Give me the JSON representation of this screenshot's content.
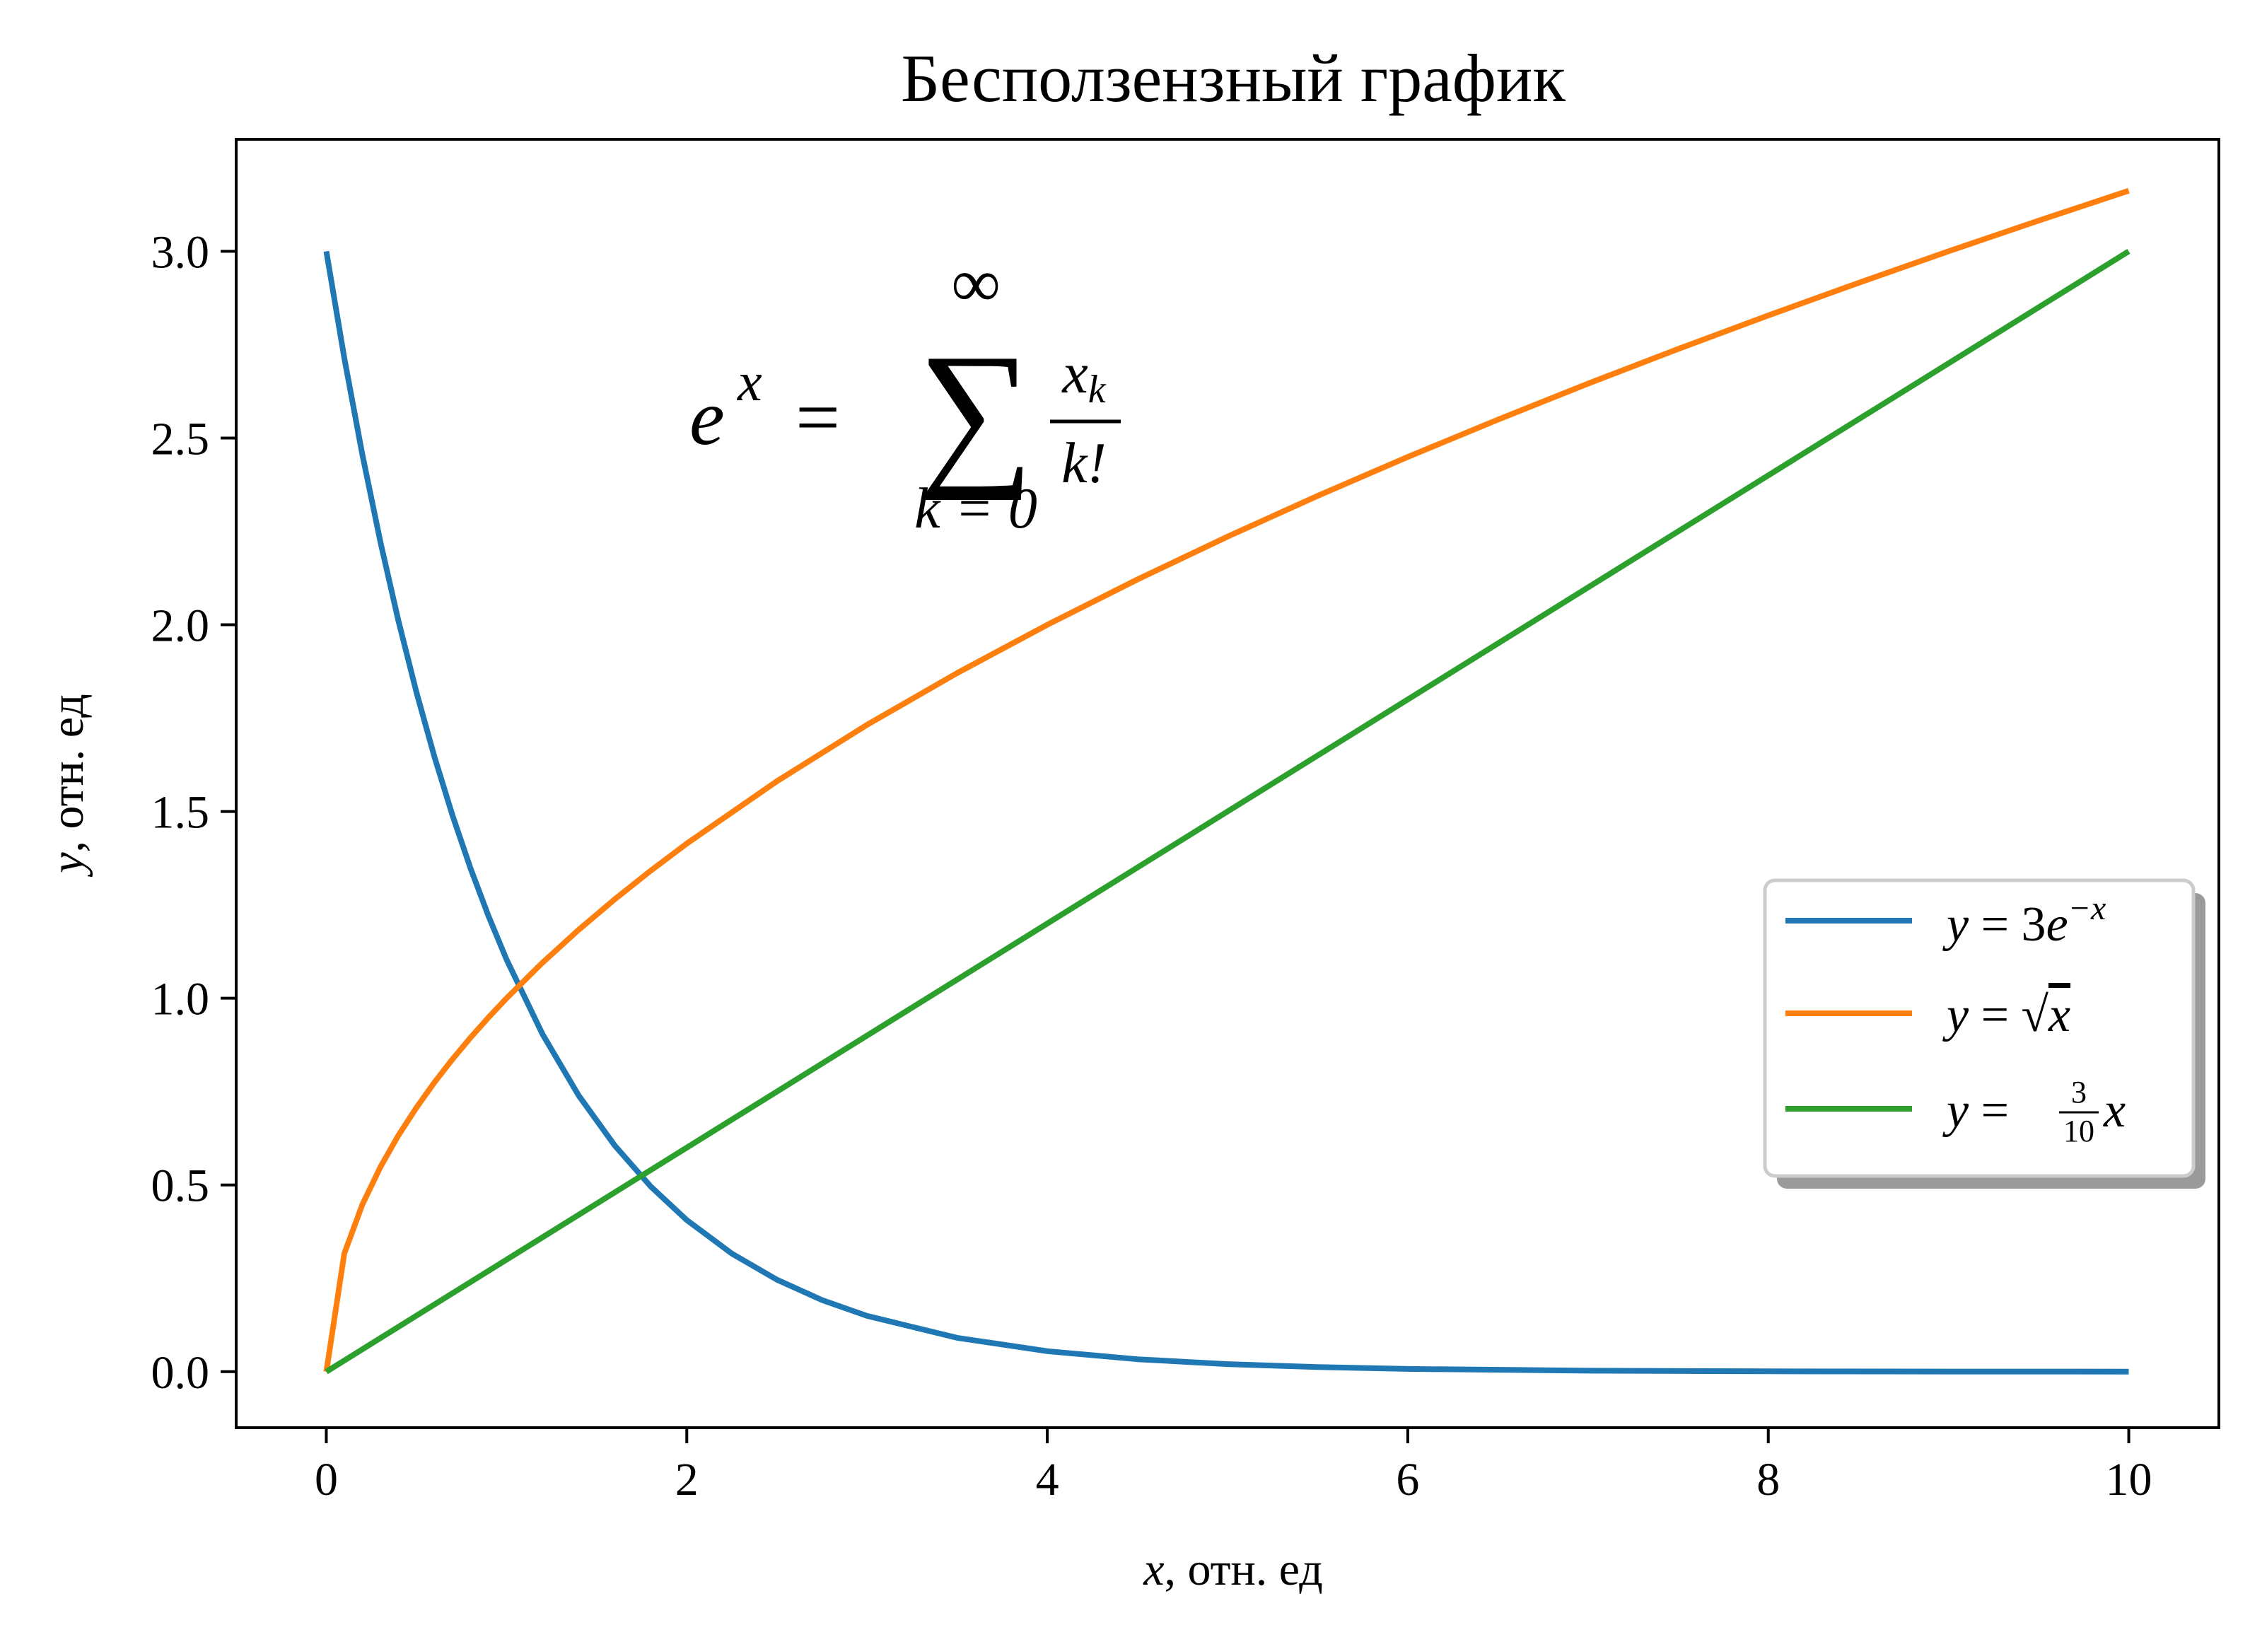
{
  "chart_data": {
    "type": "line",
    "title": "Бесползензный график",
    "xlabel": {
      "var": "x",
      "rest": ", отн. ед"
    },
    "ylabel": {
      "var": "y",
      "rest": ", отн. ед"
    },
    "xlim": [
      -0.5,
      10.5
    ],
    "ylim": [
      -0.15,
      3.3
    ],
    "x_ticks": [
      0,
      2,
      4,
      6,
      8,
      10
    ],
    "x_tick_labels": [
      "0",
      "2",
      "4",
      "6",
      "8",
      "10"
    ],
    "y_ticks": [
      0,
      0.5,
      1.0,
      1.5,
      2.0,
      2.5,
      3.0
    ],
    "y_tick_labels": [
      "0.0",
      "0.5",
      "1.0",
      "1.5",
      "2.0",
      "2.5",
      "3.0"
    ],
    "grid": false,
    "legend": {
      "location": "center-right",
      "entries": [
        "y = 3e^{-x}",
        "y = \\sqrt{x}",
        "y = \\frac{3}{10} x"
      ],
      "shadow": true
    },
    "annotation": {
      "text": "e^x = \\sum_{k=0}^{\\infty} \\frac{x_k}{k!}",
      "x": 2.0,
      "y": 2.5
    },
    "series": [
      {
        "color": "#1f77b4",
        "formula": "3*exp(-x)",
        "x": [
          0,
          0.1,
          0.2,
          0.3,
          0.4,
          0.5,
          0.6,
          0.7,
          0.8,
          0.9,
          1.0,
          1.2,
          1.4,
          1.6,
          1.8,
          2.0,
          2.25,
          2.5,
          2.75,
          3.0,
          3.5,
          4.0,
          4.5,
          5.0,
          5.5,
          6.0,
          7.0,
          8.0,
          9.0,
          10.0
        ],
        "y": [
          3.0,
          2.7145,
          2.4562,
          2.2225,
          2.011,
          1.8196,
          1.6464,
          1.4898,
          1.348,
          1.2197,
          1.1036,
          0.9036,
          0.7398,
          0.6057,
          0.4959,
          0.406,
          0.3162,
          0.2463,
          0.1918,
          0.1494,
          0.0906,
          0.0549,
          0.0333,
          0.0202,
          0.0123,
          0.0074,
          0.0027,
          0.001,
          0.0004,
          0.0001
        ]
      },
      {
        "color": "#ff7f0e",
        "formula": "sqrt(x)",
        "x": [
          0,
          0.1,
          0.2,
          0.3,
          0.4,
          0.5,
          0.6,
          0.7,
          0.8,
          0.9,
          1.0,
          1.2,
          1.4,
          1.6,
          1.8,
          2.0,
          2.5,
          3.0,
          3.5,
          4.0,
          4.5,
          5.0,
          5.5,
          6.0,
          6.5,
          7.0,
          7.5,
          8.0,
          8.5,
          9.0,
          9.5,
          10.0
        ],
        "y": [
          0.0,
          0.3162,
          0.4472,
          0.5477,
          0.6325,
          0.7071,
          0.7746,
          0.8367,
          0.8944,
          0.9487,
          1.0,
          1.0954,
          1.1832,
          1.2649,
          1.3416,
          1.4142,
          1.5811,
          1.7321,
          1.8708,
          2.0,
          2.1213,
          2.2361,
          2.3452,
          2.4495,
          2.5495,
          2.6458,
          2.7386,
          2.8284,
          2.9155,
          3.0,
          3.0822,
          3.1623
        ]
      },
      {
        "color": "#2ca02c",
        "formula": "0.3*x",
        "x": [
          0,
          10
        ],
        "y": [
          0.0,
          3.0
        ]
      }
    ]
  }
}
